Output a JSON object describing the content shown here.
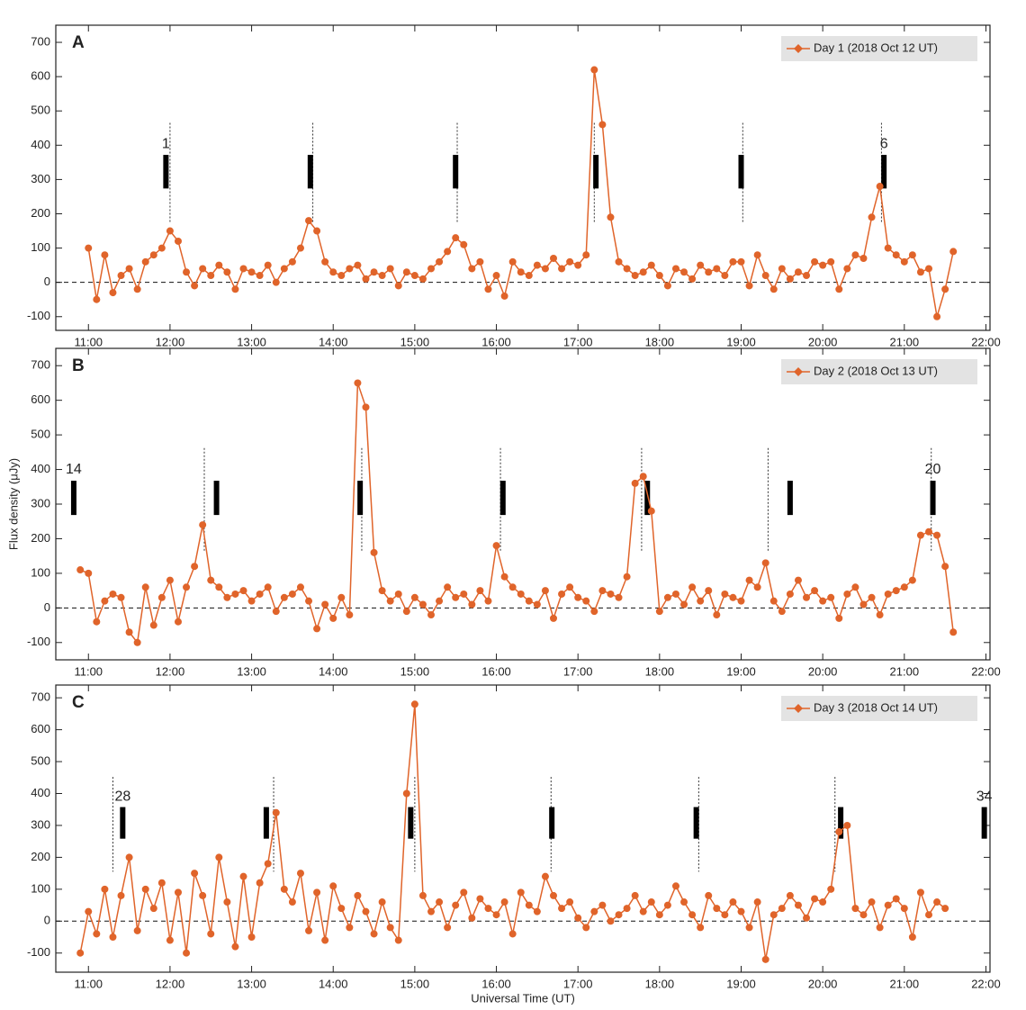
{
  "chart_data": [
    {
      "type": "line",
      "title": "A",
      "x": [
        11.0,
        11.1,
        11.2,
        11.3,
        11.4,
        11.5,
        11.6,
        11.7,
        11.8,
        11.9,
        12.0,
        12.1,
        12.2,
        12.3,
        12.4,
        12.5,
        12.6,
        12.7,
        12.8,
        12.9,
        13.0,
        13.1,
        13.2,
        13.3,
        13.4,
        13.5,
        13.6,
        13.7,
        13.8,
        13.9,
        14.0,
        14.1,
        14.2,
        14.3,
        14.4,
        14.5,
        14.6,
        14.7,
        14.8,
        14.9,
        15.0,
        15.1,
        15.2,
        15.3,
        15.4,
        15.5,
        15.6,
        15.7,
        15.8,
        15.9,
        16.0,
        16.1,
        16.2,
        16.3,
        16.4,
        16.5,
        16.6,
        16.7,
        16.8,
        16.9,
        17.0,
        17.1,
        17.2,
        17.3,
        17.4,
        17.5,
        17.6,
        17.7,
        17.8,
        17.9,
        18.0,
        18.1,
        18.2,
        18.3,
        18.4,
        18.5,
        18.6,
        18.7,
        18.8,
        18.9,
        19.0,
        19.1,
        19.2,
        19.3,
        19.4,
        19.5,
        19.6,
        19.7,
        19.8,
        19.9,
        20.0,
        20.1,
        20.2,
        20.3,
        20.4,
        20.5,
        20.6,
        20.7,
        20.8,
        20.9,
        21.0,
        21.1,
        21.2,
        21.3,
        21.4,
        21.5,
        21.6
      ],
      "series": [
        {
          "name": "Day 1 (2018 Oct 12 UT)",
          "color": "#e0642a",
          "values": [
            100,
            -50,
            80,
            -30,
            20,
            40,
            -20,
            60,
            80,
            100,
            150,
            120,
            30,
            -10,
            40,
            20,
            50,
            30,
            -20,
            40,
            30,
            20,
            50,
            0,
            40,
            60,
            100,
            180,
            150,
            60,
            30,
            20,
            40,
            50,
            10,
            30,
            20,
            40,
            -10,
            30,
            20,
            10,
            40,
            60,
            90,
            130,
            110,
            40,
            60,
            -20,
            20,
            -40,
            60,
            30,
            20,
            50,
            40,
            70,
            40,
            60,
            50,
            80,
            620,
            460,
            190,
            60,
            40,
            20,
            30,
            50,
            20,
            -10,
            40,
            30,
            10,
            50,
            30,
            40,
            20,
            60,
            60,
            -10,
            80,
            20,
            -20,
            40,
            10,
            30,
            20,
            60,
            50,
            60,
            -20,
            40,
            80,
            70,
            190,
            280,
            100,
            80,
            60,
            80,
            30,
            40,
            -100,
            -20,
            90
          ]
        }
      ],
      "xlim": [
        10.6,
        22.05
      ],
      "ylim": [
        -140,
        750
      ],
      "hline": 0,
      "xticks": [
        {
          "value": 11,
          "label": "11:00"
        },
        {
          "value": 12,
          "label": "12:00"
        },
        {
          "value": 13,
          "label": "13:00"
        },
        {
          "value": 14,
          "label": "14:00"
        },
        {
          "value": 15,
          "label": "15:00"
        },
        {
          "value": 16,
          "label": "16:00"
        },
        {
          "value": 17,
          "label": "17:00"
        },
        {
          "value": 18,
          "label": "18:00"
        },
        {
          "value": 19,
          "label": "19:00"
        },
        {
          "value": 20,
          "label": "20:00"
        },
        {
          "value": 21,
          "label": "21:00"
        },
        {
          "value": 22,
          "label": "22:00"
        }
      ],
      "yticks": [
        -100,
        0,
        100,
        200,
        300,
        400,
        500,
        600,
        700
      ],
      "bars": [
        {
          "x": 11.95,
          "label": "1"
        },
        {
          "x": 13.72
        },
        {
          "x": 15.5
        },
        {
          "x": 17.22
        },
        {
          "x": 19.0
        },
        {
          "x": 20.75,
          "label": "6"
        }
      ],
      "dotted_lines": [
        12.0,
        13.75,
        15.52,
        17.2,
        19.02,
        20.72
      ]
    },
    {
      "type": "line",
      "title": "B",
      "ylabel": "Flux density (μJy)",
      "x": [
        10.9,
        11.0,
        11.1,
        11.2,
        11.3,
        11.4,
        11.5,
        11.6,
        11.7,
        11.8,
        11.9,
        12.0,
        12.1,
        12.2,
        12.3,
        12.4,
        12.5,
        12.6,
        12.7,
        12.8,
        12.9,
        13.0,
        13.1,
        13.2,
        13.3,
        13.4,
        13.5,
        13.6,
        13.7,
        13.8,
        13.9,
        14.0,
        14.1,
        14.2,
        14.3,
        14.4,
        14.5,
        14.6,
        14.7,
        14.8,
        14.9,
        15.0,
        15.1,
        15.2,
        15.3,
        15.4,
        15.5,
        15.6,
        15.7,
        15.8,
        15.9,
        16.0,
        16.1,
        16.2,
        16.3,
        16.4,
        16.5,
        16.6,
        16.7,
        16.8,
        16.9,
        17.0,
        17.1,
        17.2,
        17.3,
        17.4,
        17.5,
        17.6,
        17.7,
        17.8,
        17.9,
        18.0,
        18.1,
        18.2,
        18.3,
        18.4,
        18.5,
        18.6,
        18.7,
        18.8,
        18.9,
        19.0,
        19.1,
        19.2,
        19.3,
        19.4,
        19.5,
        19.6,
        19.7,
        19.8,
        19.9,
        20.0,
        20.1,
        20.2,
        20.3,
        20.4,
        20.5,
        20.6,
        20.7,
        20.8,
        20.9,
        21.0,
        21.1,
        21.2,
        21.3,
        21.4,
        21.5,
        21.6
      ],
      "series": [
        {
          "name": "Day 2 (2018 Oct 13 UT)",
          "color": "#e0642a",
          "values": [
            110,
            100,
            -40,
            20,
            40,
            30,
            -70,
            -100,
            60,
            -50,
            30,
            80,
            -40,
            60,
            120,
            240,
            80,
            60,
            30,
            40,
            50,
            20,
            40,
            60,
            -10,
            30,
            40,
            60,
            20,
            -60,
            10,
            -30,
            30,
            -20,
            650,
            580,
            160,
            50,
            20,
            40,
            -10,
            30,
            10,
            -20,
            20,
            60,
            30,
            40,
            10,
            50,
            20,
            180,
            90,
            60,
            40,
            20,
            10,
            50,
            -30,
            40,
            60,
            30,
            20,
            -10,
            50,
            40,
            30,
            90,
            360,
            380,
            280,
            -10,
            30,
            40,
            10,
            60,
            20,
            50,
            -20,
            40,
            30,
            20,
            80,
            60,
            130,
            20,
            -10,
            40,
            80,
            30,
            50,
            20,
            30,
            -30,
            40,
            60,
            10,
            30,
            -20,
            40,
            50,
            60,
            80,
            210,
            220,
            210,
            120,
            -70
          ]
        }
      ],
      "xlim": [
        10.6,
        22.05
      ],
      "ylim": [
        -150,
        750
      ],
      "hline": 0,
      "xticks": [
        {
          "value": 11,
          "label": "11:00"
        },
        {
          "value": 12,
          "label": "12:00"
        },
        {
          "value": 13,
          "label": "13:00"
        },
        {
          "value": 14,
          "label": "14:00"
        },
        {
          "value": 15,
          "label": "15:00"
        },
        {
          "value": 16,
          "label": "16:00"
        },
        {
          "value": 17,
          "label": "17:00"
        },
        {
          "value": 18,
          "label": "18:00"
        },
        {
          "value": 19,
          "label": "19:00"
        },
        {
          "value": 20,
          "label": "20:00"
        },
        {
          "value": 21,
          "label": "21:00"
        },
        {
          "value": 22,
          "label": "22:00"
        }
      ],
      "yticks": [
        -100,
        0,
        100,
        200,
        300,
        400,
        500,
        600,
        700
      ],
      "bars": [
        {
          "x": 10.82,
          "label": "14"
        },
        {
          "x": 12.57
        },
        {
          "x": 14.33
        },
        {
          "x": 16.08
        },
        {
          "x": 17.85
        },
        {
          "x": 19.6
        },
        {
          "x": 21.35,
          "label": "20"
        }
      ],
      "dotted_lines": [
        12.42,
        14.35,
        16.05,
        17.78,
        19.33,
        21.33
      ]
    },
    {
      "type": "line",
      "title": "C",
      "xlabel": "Universal Time (UT)",
      "x": [
        10.9,
        11.0,
        11.1,
        11.2,
        11.3,
        11.4,
        11.5,
        11.6,
        11.7,
        11.8,
        11.9,
        12.0,
        12.1,
        12.2,
        12.3,
        12.4,
        12.5,
        12.6,
        12.7,
        12.8,
        12.9,
        13.0,
        13.1,
        13.2,
        13.3,
        13.4,
        13.5,
        13.6,
        13.7,
        13.8,
        13.9,
        14.0,
        14.1,
        14.2,
        14.3,
        14.4,
        14.5,
        14.6,
        14.7,
        14.8,
        14.9,
        15.0,
        15.1,
        15.2,
        15.3,
        15.4,
        15.5,
        15.6,
        15.7,
        15.8,
        15.9,
        16.0,
        16.1,
        16.2,
        16.3,
        16.4,
        16.5,
        16.6,
        16.7,
        16.8,
        16.9,
        17.0,
        17.1,
        17.2,
        17.3,
        17.4,
        17.5,
        17.6,
        17.7,
        17.8,
        17.9,
        18.0,
        18.1,
        18.2,
        18.3,
        18.4,
        18.5,
        18.6,
        18.7,
        18.8,
        18.9,
        19.0,
        19.1,
        19.2,
        19.3,
        19.4,
        19.5,
        19.6,
        19.7,
        19.8,
        19.9,
        20.0,
        20.1,
        20.2,
        20.3,
        20.4,
        20.5,
        20.6,
        20.7,
        20.8,
        20.9,
        21.0,
        21.1,
        21.2,
        21.3,
        21.4,
        21.5
      ],
      "series": [
        {
          "name": "Day 3 (2018 Oct 14 UT)",
          "color": "#e0642a",
          "values": [
            -100,
            30,
            -40,
            100,
            -50,
            80,
            200,
            -30,
            100,
            40,
            120,
            -60,
            90,
            -100,
            150,
            80,
            -40,
            200,
            60,
            -80,
            140,
            -50,
            120,
            180,
            340,
            100,
            60,
            150,
            -30,
            90,
            -60,
            110,
            40,
            -20,
            80,
            30,
            -40,
            60,
            -20,
            -60,
            400,
            680,
            80,
            30,
            60,
            -20,
            50,
            90,
            10,
            70,
            40,
            20,
            60,
            -40,
            90,
            50,
            30,
            140,
            80,
            40,
            60,
            10,
            -20,
            30,
            50,
            0,
            20,
            40,
            80,
            30,
            60,
            20,
            50,
            110,
            60,
            20,
            -20,
            80,
            40,
            20,
            60,
            30,
            -20,
            60,
            -120,
            20,
            40,
            80,
            50,
            10,
            70,
            60,
            100,
            280,
            300,
            40,
            20,
            60,
            -20,
            50,
            70,
            40,
            -50,
            90,
            20,
            60,
            40
          ]
        }
      ],
      "xlim": [
        10.6,
        22.05
      ],
      "ylim": [
        -160,
        740
      ],
      "hline": 0,
      "xticks": [
        {
          "value": 11,
          "label": "11:00"
        },
        {
          "value": 12,
          "label": "12:00"
        },
        {
          "value": 13,
          "label": "13:00"
        },
        {
          "value": 14,
          "label": "14:00"
        },
        {
          "value": 15,
          "label": "15:00"
        },
        {
          "value": 16,
          "label": "16:00"
        },
        {
          "value": 17,
          "label": "17:00"
        },
        {
          "value": 18,
          "label": "18:00"
        },
        {
          "value": 19,
          "label": "19:00"
        },
        {
          "value": 20,
          "label": "20:00"
        },
        {
          "value": 21,
          "label": "21:00"
        },
        {
          "value": 22,
          "label": "22:00"
        }
      ],
      "yticks": [
        -100,
        0,
        100,
        200,
        300,
        400,
        500,
        600,
        700
      ],
      "bars": [
        {
          "x": 11.42,
          "label": "28"
        },
        {
          "x": 13.18
        },
        {
          "x": 14.95
        },
        {
          "x": 16.68
        },
        {
          "x": 18.45
        },
        {
          "x": 20.22
        },
        {
          "x": 21.98,
          "label": "34"
        }
      ],
      "dotted_lines": [
        11.3,
        13.27,
        15.0,
        16.67,
        18.48,
        20.15
      ]
    }
  ]
}
